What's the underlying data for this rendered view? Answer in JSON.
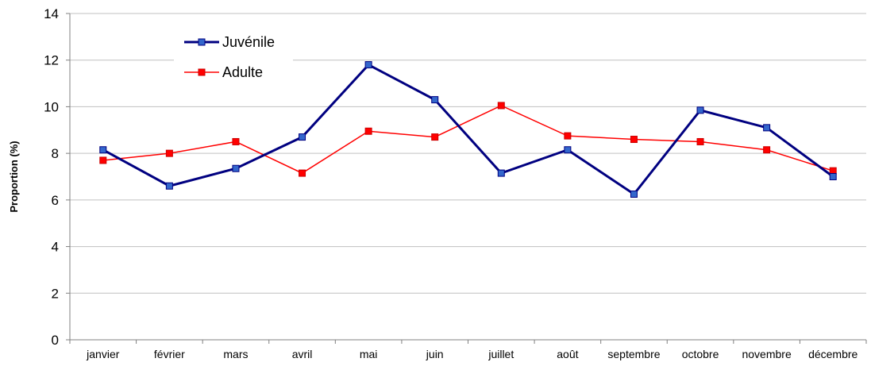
{
  "chart_data": {
    "type": "line",
    "categories": [
      "janvier",
      "février",
      "mars",
      "avril",
      "mai",
      "juin",
      "juillet",
      "août",
      "septembre",
      "octobre",
      "novembre",
      "décembre"
    ],
    "series": [
      {
        "name": "Juvénile",
        "color": "#000080",
        "marker_color": "#3366cc",
        "values": [
          8.15,
          6.6,
          7.35,
          8.7,
          11.8,
          10.3,
          7.15,
          8.15,
          6.25,
          9.85,
          9.1,
          7.0
        ]
      },
      {
        "name": "Adulte",
        "color": "#ff0000",
        "marker_color": "#ff0000",
        "values": [
          7.7,
          8.0,
          8.5,
          7.15,
          8.95,
          8.7,
          10.05,
          8.75,
          8.6,
          8.5,
          8.15,
          7.25
        ]
      }
    ],
    "ylabel": "Proportion (%)",
    "xlabel": "",
    "ylim": [
      0,
      14
    ],
    "yticks": [
      0,
      2,
      4,
      6,
      8,
      10,
      12,
      14
    ],
    "grid": true,
    "legend_position": "top-left"
  }
}
